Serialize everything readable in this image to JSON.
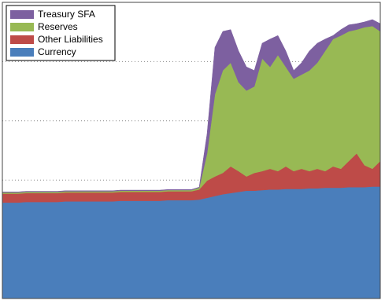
{
  "chart_data": {
    "type": "stacked_area",
    "x": [
      0,
      1,
      2,
      3,
      4,
      5,
      6,
      7,
      8,
      9,
      10,
      11,
      12,
      13,
      14,
      15,
      16,
      17,
      18,
      19,
      20,
      21,
      22,
      23,
      24,
      25,
      26,
      27,
      28,
      29,
      30,
      31,
      32,
      33,
      34,
      35,
      36,
      37,
      38,
      39,
      40,
      41,
      42,
      43,
      44,
      45,
      46,
      47,
      48
    ],
    "xlim": [
      0,
      48
    ],
    "ylim": [
      0,
      5
    ],
    "yticks": [
      0,
      1,
      2,
      3,
      4,
      5
    ],
    "grid": true,
    "legend_position": "upper left",
    "series": [
      {
        "name": "Currency",
        "color": "#4a7ebb",
        "values": [
          1.62,
          1.62,
          1.62,
          1.63,
          1.63,
          1.63,
          1.63,
          1.63,
          1.64,
          1.64,
          1.64,
          1.64,
          1.64,
          1.64,
          1.64,
          1.65,
          1.65,
          1.65,
          1.65,
          1.65,
          1.65,
          1.66,
          1.66,
          1.66,
          1.66,
          1.67,
          1.7,
          1.73,
          1.76,
          1.78,
          1.8,
          1.82,
          1.82,
          1.83,
          1.84,
          1.84,
          1.85,
          1.85,
          1.85,
          1.86,
          1.86,
          1.87,
          1.87,
          1.87,
          1.88,
          1.88,
          1.88,
          1.89,
          1.89
        ]
      },
      {
        "name": "Other Liabilities",
        "color": "#be4b48",
        "values": [
          0.15,
          0.15,
          0.15,
          0.15,
          0.15,
          0.15,
          0.15,
          0.15,
          0.15,
          0.15,
          0.15,
          0.15,
          0.15,
          0.15,
          0.15,
          0.15,
          0.15,
          0.15,
          0.15,
          0.15,
          0.15,
          0.15,
          0.15,
          0.15,
          0.15,
          0.17,
          0.29,
          0.33,
          0.36,
          0.45,
          0.35,
          0.24,
          0.3,
          0.32,
          0.35,
          0.31,
          0.38,
          0.3,
          0.34,
          0.29,
          0.33,
          0.28,
          0.36,
          0.32,
          0.44,
          0.57,
          0.37,
          0.3,
          0.43
        ]
      },
      {
        "name": "Reserves",
        "color": "#98b954",
        "values": [
          0.02,
          0.02,
          0.02,
          0.02,
          0.02,
          0.02,
          0.02,
          0.02,
          0.02,
          0.02,
          0.02,
          0.02,
          0.02,
          0.02,
          0.02,
          0.02,
          0.02,
          0.02,
          0.02,
          0.02,
          0.02,
          0.02,
          0.02,
          0.02,
          0.02,
          0.03,
          0.46,
          1.39,
          1.73,
          1.75,
          1.5,
          1.45,
          1.46,
          1.9,
          1.72,
          1.96,
          1.68,
          1.56,
          1.59,
          1.7,
          1.79,
          2.03,
          2.15,
          2.25,
          2.19,
          2.09,
          2.33,
          2.41,
          2.19
        ]
      },
      {
        "name": "Treasury SFA",
        "color": "#7d60a0",
        "values": [
          0.01,
          0.01,
          0.01,
          0.01,
          0.01,
          0.01,
          0.01,
          0.01,
          0.01,
          0.01,
          0.01,
          0.01,
          0.01,
          0.01,
          0.01,
          0.01,
          0.01,
          0.01,
          0.01,
          0.01,
          0.01,
          0.01,
          0.01,
          0.01,
          0.01,
          0.01,
          0.33,
          0.79,
          0.66,
          0.56,
          0.53,
          0.4,
          0.27,
          0.26,
          0.47,
          0.33,
          0.27,
          0.14,
          0.2,
          0.33,
          0.33,
          0.2,
          0.06,
          0.1,
          0.11,
          0.1,
          0.09,
          0.11,
          0.13
        ]
      }
    ]
  }
}
